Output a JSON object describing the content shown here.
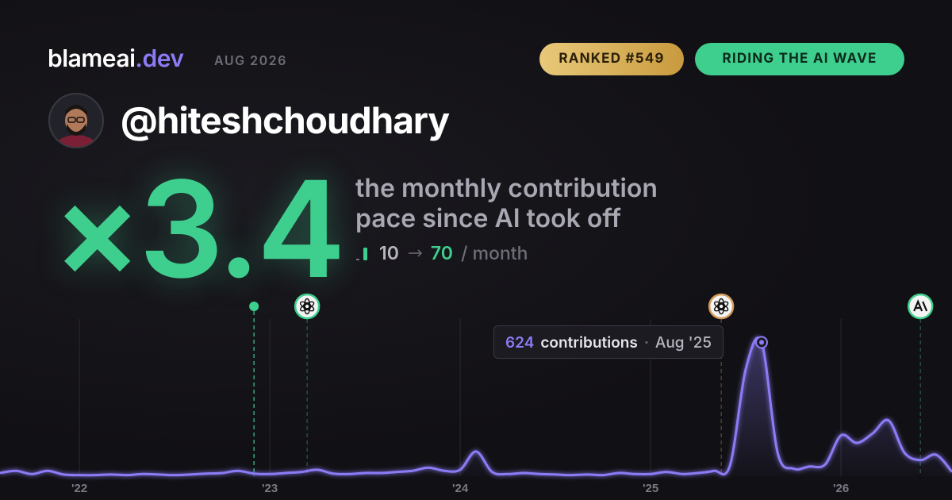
{
  "brand": {
    "name": "blameai",
    "tld": ".dev"
  },
  "period": "AUG 2026",
  "badges": [
    "RANKED #549",
    "RIDING THE AI WAVE"
  ],
  "username": "@hiteshchoudhary",
  "multiplier": "×3.4",
  "description": [
    "the monthly contribution",
    "pace since AI took off"
  ],
  "pace": {
    "before": 10,
    "after": 70,
    "unit": "/ month"
  },
  "chart_data": {
    "type": "area",
    "color": "#8b7cf6",
    "x": [
      2021.583,
      2021.667,
      2021.75,
      2021.833,
      2021.917,
      2022,
      2022.083,
      2022.167,
      2022.25,
      2022.333,
      2022.417,
      2022.5,
      2022.583,
      2022.667,
      2022.75,
      2022.833,
      2022.917,
      2023,
      2023.083,
      2023.167,
      2023.25,
      2023.333,
      2023.417,
      2023.5,
      2023.583,
      2023.667,
      2023.75,
      2023.833,
      2023.917,
      2024,
      2024.083,
      2024.167,
      2024.25,
      2024.333,
      2024.417,
      2024.5,
      2024.583,
      2024.667,
      2024.75,
      2024.833,
      2024.917,
      2025,
      2025.083,
      2025.167,
      2025.25,
      2025.333,
      2025.417,
      2025.5,
      2025.583,
      2025.667,
      2025.75,
      2025.833,
      2025.917,
      2026,
      2026.083,
      2026.167,
      2026.25,
      2026.333,
      2026.417,
      2026.5,
      2026.583
    ],
    "values": [
      15,
      25,
      10,
      25,
      8,
      5,
      5,
      8,
      5,
      10,
      8,
      5,
      8,
      12,
      15,
      25,
      12,
      10,
      15,
      20,
      30,
      12,
      10,
      15,
      15,
      20,
      25,
      40,
      25,
      30,
      115,
      20,
      10,
      15,
      10,
      8,
      5,
      8,
      5,
      15,
      10,
      10,
      20,
      10,
      15,
      25,
      50,
      500,
      624,
      110,
      35,
      45,
      55,
      190,
      155,
      200,
      260,
      110,
      75,
      100,
      20
    ],
    "xlim": [
      2021.583,
      2026.583
    ],
    "ylim": [
      0,
      740
    ],
    "xticks": [
      {
        "value": 2022,
        "label": "'22"
      },
      {
        "value": 2023,
        "label": "'23"
      },
      {
        "value": 2024,
        "label": "'24"
      },
      {
        "value": 2025,
        "label": "'25"
      },
      {
        "value": 2026,
        "label": "'26"
      }
    ],
    "grid": true,
    "events_x": [
      2022.917,
      2023.196,
      2025.371,
      2026.417
    ],
    "tooltip": {
      "index": 48,
      "label": "contributions",
      "date": "Aug '25"
    }
  }
}
